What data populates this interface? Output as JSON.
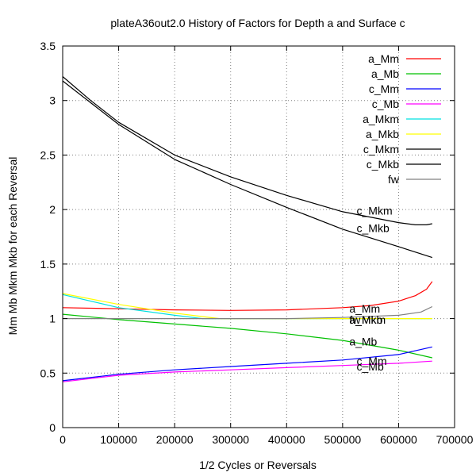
{
  "chart_data": {
    "type": "line",
    "title": "plateA36out2.0 History of Factors for Depth a and Surface c",
    "xlabel": "1/2 Cycles or Reversals",
    "ylabel": "Mm Mb Mkm Mkb  for each Reversal",
    "xlim": [
      0,
      700000
    ],
    "ylim": [
      0,
      3.5
    ],
    "xticks": [
      0,
      100000,
      200000,
      300000,
      400000,
      500000,
      600000,
      700000
    ],
    "xtick_labels": [
      "0",
      "100000",
      "200000",
      "300000",
      "400000",
      "500000",
      "600000",
      "700000"
    ],
    "yticks": [
      0,
      0.5,
      1,
      1.5,
      2,
      2.5,
      3,
      3.5
    ],
    "ytick_labels": [
      "0",
      "0.5",
      "1",
      "1.5",
      "2",
      "2.5",
      "3",
      "3.5"
    ],
    "grid": true,
    "legend_position": "top-right",
    "series": [
      {
        "name": "a_Mm",
        "color": "#ff0000",
        "end_label": "a_Mm",
        "x": [
          0,
          100000,
          200000,
          300000,
          400000,
          500000,
          550000,
          600000,
          630000,
          650000,
          660000
        ],
        "y": [
          1.1,
          1.09,
          1.08,
          1.075,
          1.08,
          1.1,
          1.12,
          1.16,
          1.21,
          1.27,
          1.34
        ]
      },
      {
        "name": "a_Mb",
        "color": "#00c000",
        "end_label": "a_Mb",
        "x": [
          0,
          100000,
          200000,
          300000,
          400000,
          500000,
          600000,
          660000
        ],
        "y": [
          1.04,
          0.99,
          0.95,
          0.91,
          0.86,
          0.8,
          0.71,
          0.64
        ]
      },
      {
        "name": "c_Mm",
        "color": "#0000ff",
        "end_label": "c_Mm",
        "x": [
          0,
          100000,
          200000,
          300000,
          400000,
          500000,
          600000,
          660000
        ],
        "y": [
          0.43,
          0.49,
          0.53,
          0.56,
          0.59,
          0.62,
          0.67,
          0.74
        ]
      },
      {
        "name": "c_Mb",
        "color": "#ff00ff",
        "end_label": "c_Mb",
        "x": [
          0,
          100000,
          200000,
          300000,
          400000,
          500000,
          600000,
          660000
        ],
        "y": [
          0.42,
          0.48,
          0.51,
          0.53,
          0.55,
          0.57,
          0.59,
          0.61
        ]
      },
      {
        "name": "a_Mkm",
        "color": "#00e0e0",
        "end_label": "a_Mkm",
        "x": [
          0,
          100000,
          200000,
          250000,
          300000,
          400000,
          500000,
          600000,
          660000
        ],
        "y": [
          1.22,
          1.1,
          1.03,
          1.0,
          1.0,
          1.0,
          1.0,
          1.0,
          1.0
        ]
      },
      {
        "name": "a_Mkb",
        "color": "#ffff00",
        "end_label": "a_Mkb",
        "x": [
          0,
          100000,
          200000,
          280000,
          300000,
          400000,
          500000,
          600000,
          660000
        ],
        "y": [
          1.23,
          1.13,
          1.05,
          1.0,
          1.0,
          1.0,
          1.0,
          1.0,
          1.0
        ]
      },
      {
        "name": "c_Mkm",
        "color": "#000000",
        "end_label": "c_Mkm",
        "x": [
          0,
          50000,
          100000,
          200000,
          300000,
          400000,
          500000,
          600000,
          630000,
          650000,
          660000
        ],
        "y": [
          3.22,
          3.0,
          2.8,
          2.5,
          2.3,
          2.13,
          1.98,
          1.88,
          1.86,
          1.86,
          1.87
        ]
      },
      {
        "name": "c_Mkb",
        "color": "#000000",
        "end_label": "c_Mkb",
        "x": [
          0,
          50000,
          100000,
          200000,
          300000,
          400000,
          500000,
          600000,
          660000
        ],
        "y": [
          3.18,
          2.98,
          2.78,
          2.46,
          2.23,
          2.02,
          1.82,
          1.66,
          1.56
        ]
      },
      {
        "name": "fw",
        "color": "#808080",
        "end_label": "fw",
        "x": [
          0,
          100000,
          200000,
          300000,
          400000,
          500000,
          600000,
          640000,
          660000
        ],
        "y": [
          1.0,
          1.0,
          1.0,
          1.0,
          1.0,
          1.01,
          1.03,
          1.06,
          1.11
        ]
      }
    ],
    "annotations": [
      {
        "text": "c_Mkm",
        "x": 525000,
        "y": 1.99
      },
      {
        "text": "c_Mkb",
        "x": 525000,
        "y": 1.83
      },
      {
        "text": "a_Mm",
        "x": 512000,
        "y": 1.09
      },
      {
        "text": "a_Mkm",
        "x": 512000,
        "y": 0.99
      },
      {
        "text": "a_Mkb",
        "x": 512000,
        "y": 0.99
      },
      {
        "text": "fw",
        "x": 512000,
        "y": 0.99
      },
      {
        "text": "a_Mb",
        "x": 512000,
        "y": 0.79
      },
      {
        "text": "c_Mm",
        "x": 525000,
        "y": 0.61
      },
      {
        "text": "c_Mb",
        "x": 525000,
        "y": 0.56
      }
    ]
  }
}
